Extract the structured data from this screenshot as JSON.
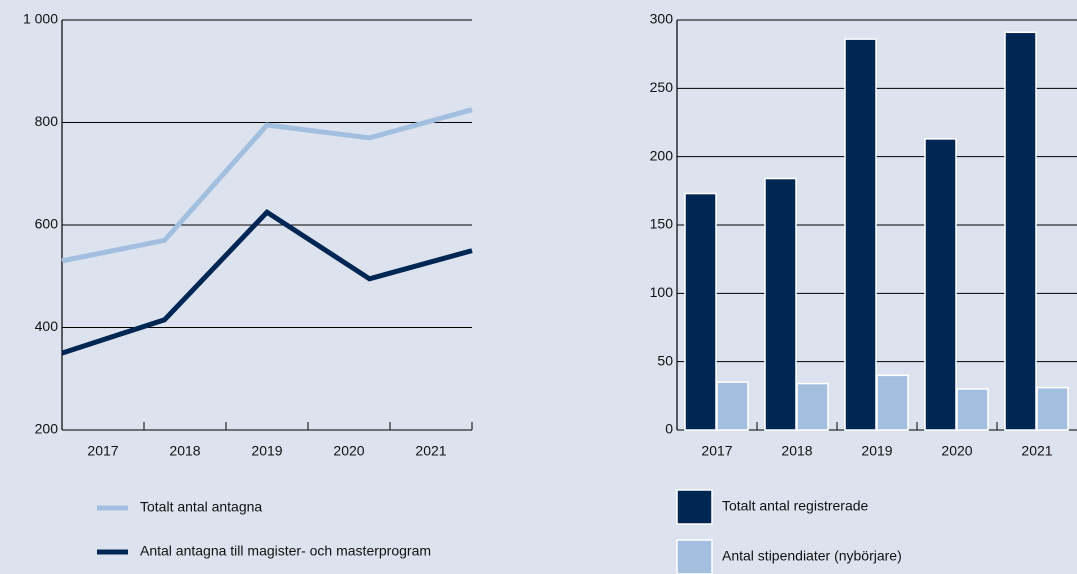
{
  "chart_data": [
    {
      "type": "line",
      "categories": [
        "2017",
        "2018",
        "2019",
        "2020",
        "2021"
      ],
      "series": [
        {
          "name": "Totalt antal antagna",
          "color": "#a3bfdf",
          "values": [
            530,
            570,
            795,
            770,
            825
          ]
        },
        {
          "name": "Antal antagna till magister- och masterprogram",
          "color": "#002654",
          "values": [
            350,
            415,
            625,
            495,
            550
          ]
        }
      ],
      "ylim": [
        200,
        1000
      ],
      "yticks": [
        200,
        400,
        600,
        800,
        {
          "value": 1000,
          "label": "1 000"
        }
      ],
      "grid": true
    },
    {
      "type": "bar",
      "categories": [
        "2017",
        "2018",
        "2019",
        "2020",
        "2021"
      ],
      "series": [
        {
          "name": "Totalt antal registrerade",
          "color": "#002654",
          "values": [
            173,
            184,
            286,
            213,
            291
          ]
        },
        {
          "name": "Antal stipendiater (nybörjare)",
          "color": "#a3bfdf",
          "values": [
            35,
            34,
            40,
            30,
            31
          ]
        }
      ],
      "ylim": [
        0,
        300
      ],
      "yticks": [
        0,
        50,
        100,
        150,
        200,
        250,
        300
      ],
      "grid": true
    }
  ]
}
